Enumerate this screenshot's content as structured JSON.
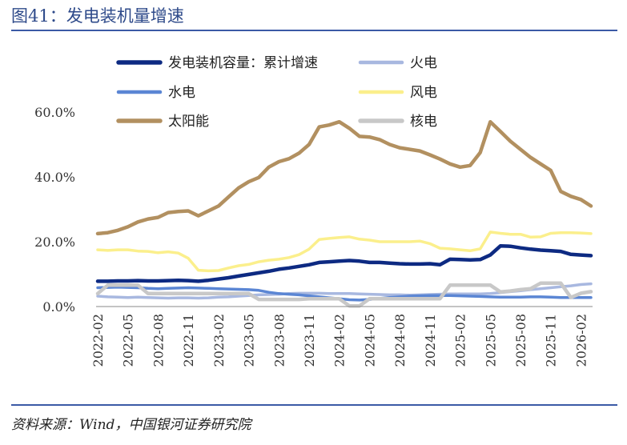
{
  "header": {
    "title": "图41：发电装机量增速"
  },
  "footer": {
    "source": "资料来源：Wind，中国银河证券研究院"
  },
  "chart_data": {
    "type": "line",
    "title": "图41：发电装机量增速",
    "xlabel": "",
    "ylabel": "",
    "ylim": [
      0,
      60
    ],
    "y_ticks": [
      "0.0%",
      "20.0%",
      "40.0%",
      "60.0%"
    ],
    "grid": false,
    "legend_position": "top",
    "x": [
      "2022-02",
      "2022-03",
      "2022-04",
      "2022-05",
      "2022-06",
      "2022-07",
      "2022-08",
      "2022-09",
      "2022-10",
      "2022-11",
      "2022-12",
      "2023-01",
      "2023-02",
      "2023-03",
      "2023-04",
      "2023-05",
      "2023-06",
      "2023-07",
      "2023-08",
      "2023-09",
      "2023-10",
      "2023-11",
      "2023-12",
      "2024-01",
      "2024-02",
      "2024-03",
      "2024-04",
      "2024-05",
      "2024-06",
      "2024-07",
      "2024-08",
      "2024-09",
      "2024-10",
      "2024-11",
      "2024-12",
      "2025-01",
      "2025-02",
      "2025-03",
      "2025-04",
      "2025-05",
      "2025-06",
      "2025-07",
      "2025-08",
      "2025-09",
      "2025-10",
      "2025-11",
      "2025-12",
      "2026-01",
      "2026-02",
      "2026-03"
    ],
    "x_tick_labels": [
      "2022-02",
      "2022-05",
      "2022-08",
      "2022-11",
      "2023-02",
      "2023-05",
      "2023-08",
      "2023-11",
      "2024-02",
      "2024-05",
      "2024-08",
      "2024-11",
      "2025-02",
      "2025-05",
      "2025-08",
      "2025-11",
      "2026-02"
    ],
    "series": [
      {
        "name": "发电装机容量：累计增速",
        "color": "#0d2a82",
        "width": 4.5,
        "values": [
          7.8,
          7.8,
          7.9,
          7.9,
          8.0,
          7.9,
          7.9,
          8.0,
          8.1,
          8.0,
          7.8,
          8.1,
          8.5,
          8.9,
          9.4,
          9.9,
          10.4,
          10.9,
          11.5,
          11.9,
          12.4,
          12.9,
          13.6,
          13.8,
          14.0,
          14.2,
          14.0,
          13.6,
          13.6,
          13.4,
          13.2,
          13.1,
          13.1,
          13.2,
          12.9,
          14.6,
          14.5,
          14.4,
          14.5,
          15.9,
          18.7,
          18.6,
          18.1,
          17.7,
          17.4,
          17.2,
          17.0,
          16.1,
          15.9,
          15.7
        ]
      },
      {
        "name": "火电",
        "color": "#a8b8e0",
        "width": 3.5,
        "values": [
          3.2,
          3.0,
          2.9,
          2.8,
          2.9,
          2.8,
          2.7,
          2.6,
          2.7,
          2.7,
          2.6,
          2.7,
          2.9,
          3.0,
          3.2,
          3.4,
          3.6,
          3.7,
          3.8,
          4.0,
          4.1,
          4.1,
          4.1,
          4.0,
          4.0,
          4.0,
          3.9,
          3.8,
          3.7,
          3.6,
          3.6,
          3.5,
          3.6,
          3.7,
          3.8,
          3.9,
          3.9,
          3.9,
          3.9,
          4.0,
          4.3,
          4.6,
          4.9,
          5.2,
          5.5,
          5.8,
          6.1,
          6.4,
          6.8,
          7.0
        ]
      },
      {
        "name": "水电",
        "color": "#5b86d4",
        "width": 3.5,
        "values": [
          5.8,
          5.9,
          6.0,
          5.9,
          5.8,
          5.6,
          5.5,
          5.6,
          5.7,
          5.8,
          5.7,
          5.6,
          5.5,
          5.4,
          5.3,
          5.2,
          5.0,
          4.4,
          4.0,
          3.8,
          3.6,
          3.3,
          3.0,
          2.7,
          2.4,
          2.1,
          2.0,
          2.2,
          2.5,
          2.8,
          3.0,
          3.2,
          3.3,
          3.4,
          3.4,
          3.4,
          3.3,
          3.2,
          3.1,
          3.0,
          2.9,
          2.9,
          2.9,
          3.0,
          3.0,
          2.9,
          2.8,
          2.8,
          2.8,
          2.8
        ]
      },
      {
        "name": "风电",
        "color": "#fbef8c",
        "width": 3.5,
        "values": [
          17.5,
          17.3,
          17.5,
          17.5,
          17.1,
          17.0,
          16.6,
          16.9,
          16.5,
          14.9,
          11.2,
          11.0,
          11.1,
          11.9,
          12.6,
          13.0,
          13.8,
          14.3,
          14.6,
          15.1,
          16.0,
          17.7,
          20.7,
          21.0,
          21.3,
          21.5,
          20.8,
          20.5,
          20.0,
          20.0,
          20.0,
          20.0,
          20.2,
          19.4,
          18.0,
          17.8,
          17.5,
          17.2,
          17.8,
          23.0,
          22.6,
          22.3,
          22.3,
          21.4,
          21.5,
          22.6,
          22.8,
          22.8,
          22.7,
          22.5
        ]
      },
      {
        "name": "太阳能",
        "color": "#b29060",
        "width": 4.5,
        "values": [
          22.5,
          22.8,
          23.5,
          24.6,
          26.1,
          27.0,
          27.5,
          29.0,
          29.3,
          29.5,
          28.0,
          29.5,
          31.0,
          33.8,
          36.6,
          38.5,
          39.8,
          43.0,
          44.7,
          45.6,
          47.3,
          50.0,
          55.4,
          56.0,
          57.0,
          55.0,
          52.5,
          52.3,
          51.5,
          50.0,
          49.0,
          48.5,
          48.0,
          46.8,
          45.5,
          44.0,
          43.0,
          43.5,
          47.5,
          57.0,
          54.0,
          51.0,
          48.5,
          46.0,
          44.0,
          42.0,
          35.5,
          34.0,
          33.0,
          31.0
        ]
      },
      {
        "name": "核电",
        "color": "#c8c8c8",
        "width": 4.5,
        "values": [
          4.0,
          6.6,
          6.6,
          6.6,
          6.6,
          4.0,
          4.0,
          4.0,
          4.0,
          4.0,
          4.0,
          4.0,
          4.0,
          4.0,
          4.0,
          4.0,
          2.2,
          2.2,
          2.2,
          2.2,
          2.2,
          2.4,
          2.4,
          2.4,
          2.4,
          0.2,
          0.2,
          2.4,
          2.4,
          2.4,
          2.4,
          2.4,
          2.4,
          2.4,
          2.4,
          6.6,
          6.6,
          6.6,
          6.6,
          6.6,
          4.5,
          4.8,
          5.2,
          5.5,
          7.2,
          7.2,
          7.2,
          2.8,
          4.1,
          4.6
        ]
      }
    ],
    "legend": [
      {
        "label": "发电装机容量：累计增速",
        "series": 0
      },
      {
        "label": "火电",
        "series": 1
      },
      {
        "label": "水电",
        "series": 2
      },
      {
        "label": "风电",
        "series": 3
      },
      {
        "label": "太阳能",
        "series": 4
      },
      {
        "label": "核电",
        "series": 5
      }
    ]
  }
}
